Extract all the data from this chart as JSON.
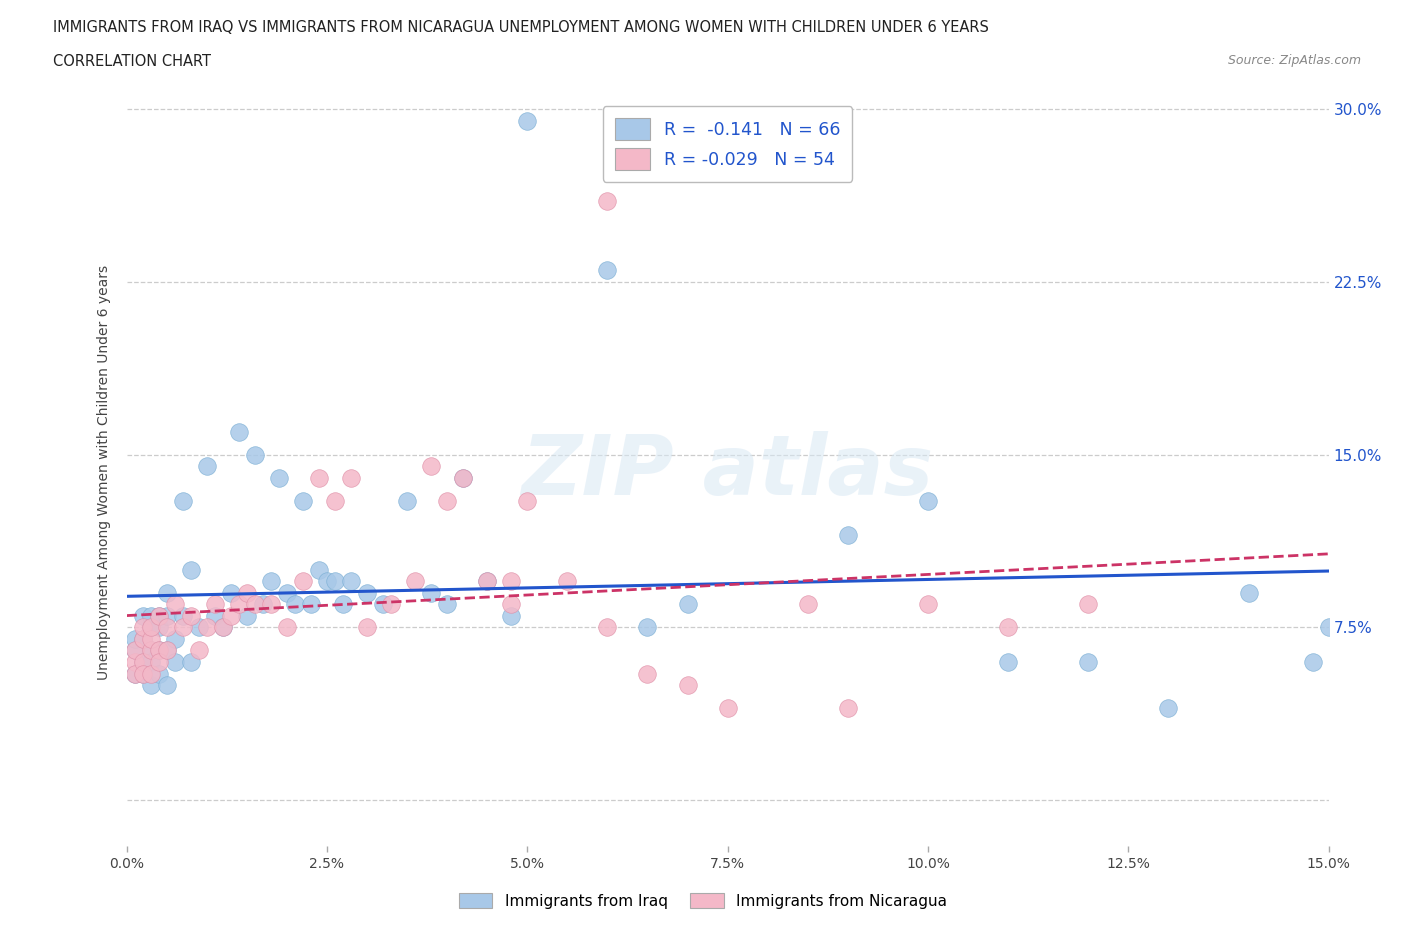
{
  "title_line1": "IMMIGRANTS FROM IRAQ VS IMMIGRANTS FROM NICARAGUA UNEMPLOYMENT AMONG WOMEN WITH CHILDREN UNDER 6 YEARS",
  "title_line2": "CORRELATION CHART",
  "source_text": "Source: ZipAtlas.com",
  "ylabel": "Unemployment Among Women with Children Under 6 years",
  "xlim": [
    0.0,
    0.15
  ],
  "ylim": [
    -0.02,
    0.305
  ],
  "iraq_color": "#a8c8e8",
  "iraq_edge_color": "#7bafd4",
  "nicaragua_color": "#f4b8c8",
  "nicaragua_edge_color": "#e090a8",
  "iraq_line_color": "#2255cc",
  "nicaragua_line_color": "#cc3366",
  "iraq_R": -0.141,
  "iraq_N": 66,
  "nicaragua_R": -0.029,
  "nicaragua_N": 54,
  "legend_label_iraq": "Immigrants from Iraq",
  "legend_label_nicaragua": "Immigrants from Nicaragua",
  "background_color": "#ffffff",
  "grid_color": "#cccccc",
  "iraq_x": [
    0.001,
    0.001,
    0.001,
    0.002,
    0.002,
    0.002,
    0.002,
    0.003,
    0.003,
    0.003,
    0.003,
    0.003,
    0.004,
    0.004,
    0.004,
    0.004,
    0.005,
    0.005,
    0.005,
    0.005,
    0.006,
    0.006,
    0.007,
    0.007,
    0.008,
    0.008,
    0.009,
    0.01,
    0.011,
    0.012,
    0.013,
    0.014,
    0.015,
    0.016,
    0.017,
    0.018,
    0.019,
    0.02,
    0.021,
    0.022,
    0.023,
    0.024,
    0.025,
    0.026,
    0.027,
    0.028,
    0.03,
    0.032,
    0.035,
    0.038,
    0.04,
    0.042,
    0.045,
    0.048,
    0.05,
    0.06,
    0.065,
    0.07,
    0.09,
    0.1,
    0.11,
    0.12,
    0.13,
    0.14,
    0.148,
    0.15
  ],
  "iraq_y": [
    0.065,
    0.055,
    0.07,
    0.08,
    0.06,
    0.07,
    0.055,
    0.075,
    0.065,
    0.08,
    0.05,
    0.06,
    0.075,
    0.065,
    0.055,
    0.08,
    0.09,
    0.065,
    0.08,
    0.05,
    0.07,
    0.06,
    0.08,
    0.13,
    0.06,
    0.1,
    0.075,
    0.145,
    0.08,
    0.075,
    0.09,
    0.16,
    0.08,
    0.15,
    0.085,
    0.095,
    0.14,
    0.09,
    0.085,
    0.13,
    0.085,
    0.1,
    0.095,
    0.095,
    0.085,
    0.095,
    0.09,
    0.085,
    0.13,
    0.09,
    0.085,
    0.14,
    0.095,
    0.08,
    0.295,
    0.23,
    0.075,
    0.085,
    0.115,
    0.13,
    0.06,
    0.06,
    0.04,
    0.09,
    0.06,
    0.075
  ],
  "nicaragua_x": [
    0.001,
    0.001,
    0.001,
    0.002,
    0.002,
    0.002,
    0.002,
    0.003,
    0.003,
    0.003,
    0.003,
    0.004,
    0.004,
    0.004,
    0.005,
    0.005,
    0.006,
    0.007,
    0.008,
    0.009,
    0.01,
    0.011,
    0.012,
    0.013,
    0.014,
    0.015,
    0.016,
    0.018,
    0.02,
    0.022,
    0.024,
    0.026,
    0.028,
    0.03,
    0.033,
    0.036,
    0.038,
    0.04,
    0.042,
    0.045,
    0.048,
    0.05,
    0.055,
    0.06,
    0.065,
    0.07,
    0.075,
    0.085,
    0.09,
    0.1,
    0.11,
    0.12,
    0.048,
    0.06
  ],
  "nicaragua_y": [
    0.06,
    0.065,
    0.055,
    0.07,
    0.06,
    0.055,
    0.075,
    0.065,
    0.07,
    0.075,
    0.055,
    0.08,
    0.065,
    0.06,
    0.075,
    0.065,
    0.085,
    0.075,
    0.08,
    0.065,
    0.075,
    0.085,
    0.075,
    0.08,
    0.085,
    0.09,
    0.085,
    0.085,
    0.075,
    0.095,
    0.14,
    0.13,
    0.14,
    0.075,
    0.085,
    0.095,
    0.145,
    0.13,
    0.14,
    0.095,
    0.095,
    0.13,
    0.095,
    0.075,
    0.055,
    0.05,
    0.04,
    0.085,
    0.04,
    0.085,
    0.075,
    0.085,
    0.085,
    0.26
  ],
  "xtick_positions": [
    0.0,
    0.025,
    0.05,
    0.075,
    0.1,
    0.125,
    0.15
  ],
  "xtick_labels": [
    "0.0%",
    "2.5%",
    "5.0%",
    "7.5%",
    "10.0%",
    "12.5%",
    "15.0%"
  ],
  "ytick_positions": [
    0.0,
    0.075,
    0.15,
    0.225,
    0.3
  ],
  "ytick_labels_right": [
    "",
    "7.5%",
    "15.0%",
    "22.5%",
    "30.0%"
  ]
}
